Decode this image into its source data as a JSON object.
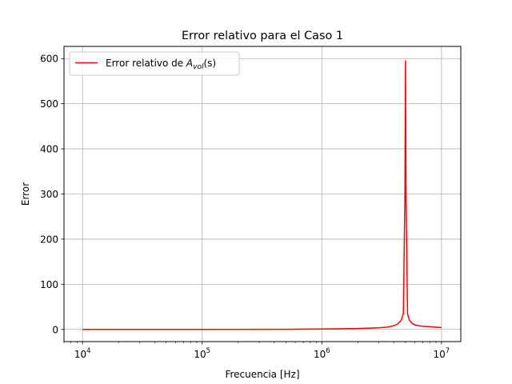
{
  "chart_data": {
    "type": "line",
    "title": "Error relativo para el Caso 1",
    "xlabel": "Frecuencia [Hz]",
    "ylabel": "Error",
    "xscale": "log",
    "xlim": [
      7000,
      14500000
    ],
    "ylim": [
      -27,
      627
    ],
    "grid": true,
    "legend_position": "top-left",
    "x_ticks": [
      {
        "value": 10000,
        "base": "10",
        "exp": "4"
      },
      {
        "value": 100000,
        "base": "10",
        "exp": "5"
      },
      {
        "value": 1000000,
        "base": "10",
        "exp": "6"
      },
      {
        "value": 10000000,
        "base": "10",
        "exp": "7"
      }
    ],
    "y_ticks": [
      0,
      100,
      200,
      300,
      400,
      500,
      600
    ],
    "series": [
      {
        "name": "Error relativo de A_vol(s)",
        "legend_text": "Error relativo de ",
        "legend_math_base": "A",
        "legend_math_sub": "vol",
        "legend_math_arg": "(s)",
        "color": "#ff0000",
        "x": [
          10000,
          100000,
          500000,
          1000000,
          2000000,
          3000000,
          3500000,
          4000000,
          4300000,
          4600000,
          4800000,
          4950000,
          5000000,
          5050000,
          5200000,
          5400000,
          5700000,
          6000000,
          6500000,
          7000000,
          8000000,
          9000000,
          10000000
        ],
        "y": [
          0,
          0,
          0.3,
          1,
          2,
          3.5,
          5,
          8,
          12,
          20,
          35,
          300,
          595,
          300,
          35,
          20,
          13,
          10,
          8,
          7,
          6,
          5,
          4
        ]
      }
    ]
  }
}
